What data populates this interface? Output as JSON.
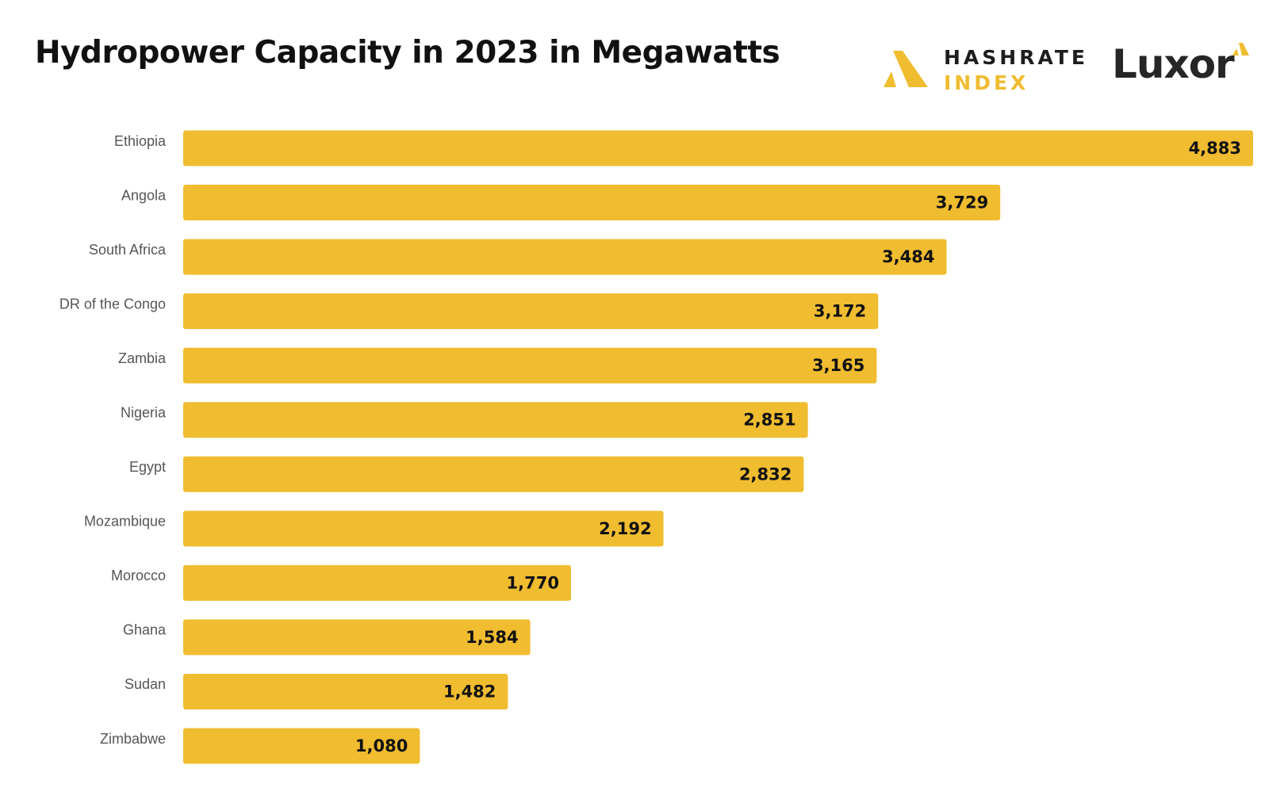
{
  "title": "Hydropower Capacity in 2023 in Megawatts",
  "logos": {
    "hashrate_line1": "HASHRATE",
    "hashrate_line2": "INDEX",
    "luxor": "Luxor"
  },
  "colors": {
    "bar": "#f0bc30",
    "accent": "#f0bc30",
    "text_dark": "#111111",
    "text_label": "#555555"
  },
  "chart_data": {
    "type": "bar",
    "orientation": "horizontal",
    "title": "Hydropower Capacity in 2023 in Megawatts",
    "xlabel": "",
    "ylabel": "",
    "grid": false,
    "categories": [
      "Ethiopia",
      "Angola",
      "South Africa",
      "DR of the Congo",
      "Zambia",
      "Nigeria",
      "Egypt",
      "Mozambique",
      "Morocco",
      "Ghana",
      "Sudan",
      "Zimbabwe"
    ],
    "values": [
      4883,
      3729,
      3484,
      3172,
      3165,
      2851,
      2832,
      2192,
      1770,
      1584,
      1482,
      1080
    ],
    "value_labels": [
      "4,883",
      "3,729",
      "3,484",
      "3,172",
      "3,165",
      "2,851",
      "2,832",
      "2,192",
      "1,770",
      "1,584",
      "1,482",
      "1,080"
    ],
    "xlim": [
      0,
      4883
    ]
  }
}
